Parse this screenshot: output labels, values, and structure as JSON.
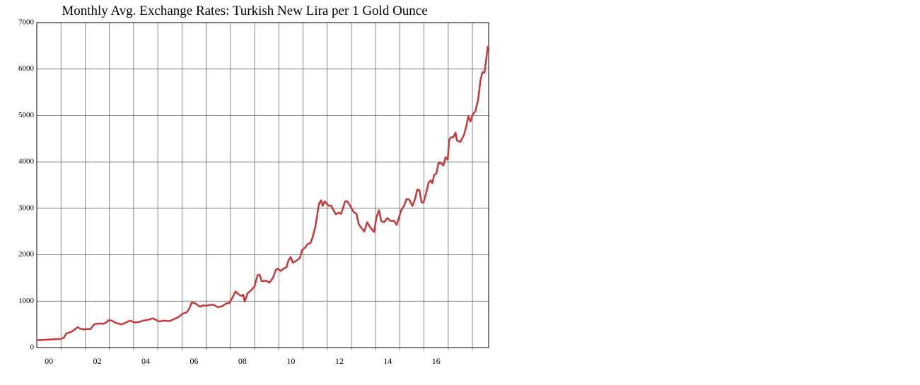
{
  "chart_data": {
    "type": "line",
    "title": "Monthly Avg. Exchange Rates: Turkish New Lira per 1 Gold Ounce",
    "color": "#c8373a",
    "x": [
      2000.03,
      2000.29,
      2000.58,
      2000.82,
      2000.99,
      2001.11,
      2001.23,
      2001.34,
      2001.49,
      2001.69,
      2001.78,
      2001.93,
      2002.05,
      2002.22,
      2002.37,
      2002.48,
      2002.6,
      2002.75,
      2002.86,
      2002.98,
      2003.1,
      2003.27,
      2003.48,
      2003.65,
      2003.86,
      2004.03,
      2004.21,
      2004.41,
      2004.62,
      2004.79,
      2004.91,
      2005.06,
      2005.23,
      2005.49,
      2005.7,
      2005.87,
      2006.02,
      2006.2,
      2006.31,
      2006.4,
      2006.52,
      2006.63,
      2006.75,
      2006.87,
      2006.99,
      2007.16,
      2007.31,
      2007.48,
      2007.66,
      2007.83,
      2007.95,
      2008.07,
      2008.21,
      2008.33,
      2008.45,
      2008.53,
      2008.59,
      2008.71,
      2008.85,
      2009.0,
      2009.12,
      2009.21,
      2009.29,
      2009.47,
      2009.61,
      2009.76,
      2009.88,
      2009.96,
      2010.08,
      2010.23,
      2010.32,
      2010.4,
      2010.49,
      2010.58,
      2010.7,
      2010.87,
      2010.96,
      2011.08,
      2011.19,
      2011.31,
      2011.4,
      2011.51,
      2011.57,
      2011.66,
      2011.75,
      2011.81,
      2011.9,
      2011.98,
      2012.07,
      2012.16,
      2012.27,
      2012.36,
      2012.48,
      2012.57,
      2012.65,
      2012.74,
      2012.83,
      2012.95,
      2013.09,
      2013.21,
      2013.3,
      2013.41,
      2013.53,
      2013.65,
      2013.79,
      2013.94,
      2014.03,
      2014.14,
      2014.23,
      2014.35,
      2014.49,
      2014.61,
      2014.76,
      2014.87,
      2014.96,
      2015.05,
      2015.17,
      2015.28,
      2015.4,
      2015.52,
      2015.63,
      2015.72,
      2015.81,
      2015.9,
      2015.98,
      2016.1,
      2016.19,
      2016.28,
      2016.34,
      2016.42,
      2016.51,
      2016.6,
      2016.71,
      2016.8,
      2016.89,
      2016.98,
      2017.04,
      2017.12,
      2017.21,
      2017.3,
      2017.36,
      2017.5,
      2017.65,
      2017.74,
      2017.83,
      2017.92,
      2018.01,
      2018.12,
      2018.24,
      2018.33,
      2018.41,
      2018.5,
      2018.64
    ],
    "values": [
      160,
      165,
      175,
      180,
      185,
      210,
      310,
      320,
      360,
      440,
      410,
      390,
      400,
      400,
      500,
      510,
      520,
      510,
      540,
      590,
      580,
      530,
      500,
      530,
      580,
      540,
      550,
      580,
      600,
      630,
      600,
      560,
      580,
      570,
      620,
      660,
      730,
      760,
      850,
      970,
      960,
      920,
      880,
      910,
      900,
      920,
      920,
      870,
      890,
      950,
      960,
      1060,
      1210,
      1150,
      1110,
      1140,
      990,
      1170,
      1230,
      1320,
      1560,
      1570,
      1430,
      1440,
      1400,
      1500,
      1680,
      1700,
      1650,
      1710,
      1730,
      1880,
      1950,
      1830,
      1860,
      1930,
      2100,
      2150,
      2230,
      2250,
      2380,
      2600,
      2800,
      3100,
      3170,
      3050,
      3150,
      3100,
      3050,
      3060,
      2950,
      2870,
      2910,
      2880,
      3000,
      3150,
      3150,
      3050,
      2920,
      2880,
      2660,
      2580,
      2500,
      2700,
      2580,
      2490,
      2800,
      2960,
      2730,
      2700,
      2790,
      2730,
      2730,
      2640,
      2790,
      2950,
      3050,
      3200,
      3180,
      3050,
      3200,
      3400,
      3390,
      3120,
      3130,
      3350,
      3560,
      3600,
      3540,
      3720,
      3750,
      3980,
      3970,
      3920,
      4100,
      4050,
      4480,
      4530,
      4530,
      4630,
      4460,
      4430,
      4580,
      4750,
      4980,
      4870,
      5020,
      5090,
      5350,
      5750,
      5930,
      5920,
      6500
    ],
    "xlim": [
      2000,
      2018.67
    ],
    "xticks": [
      {
        "value": 2000.5,
        "label": "00"
      },
      {
        "value": 2002.5,
        "label": "02"
      },
      {
        "value": 2004.5,
        "label": "04"
      },
      {
        "value": 2006.5,
        "label": "06"
      },
      {
        "value": 2008.5,
        "label": "08"
      },
      {
        "value": 2010.5,
        "label": "10"
      },
      {
        "value": 2012.5,
        "label": "12"
      },
      {
        "value": 2014.5,
        "label": "14"
      },
      {
        "value": 2016.5,
        "label": "16"
      }
    ],
    "xgrid": [
      2001,
      2002,
      2003,
      2004,
      2005,
      2006,
      2007,
      2008,
      2009,
      2010,
      2011,
      2012,
      2013,
      2014,
      2015,
      2016,
      2017,
      2018
    ],
    "ylim": [
      0,
      7000
    ],
    "yticks": [
      0,
      1000,
      2000,
      3000,
      4000,
      5000,
      6000,
      7000
    ],
    "grid": true
  }
}
